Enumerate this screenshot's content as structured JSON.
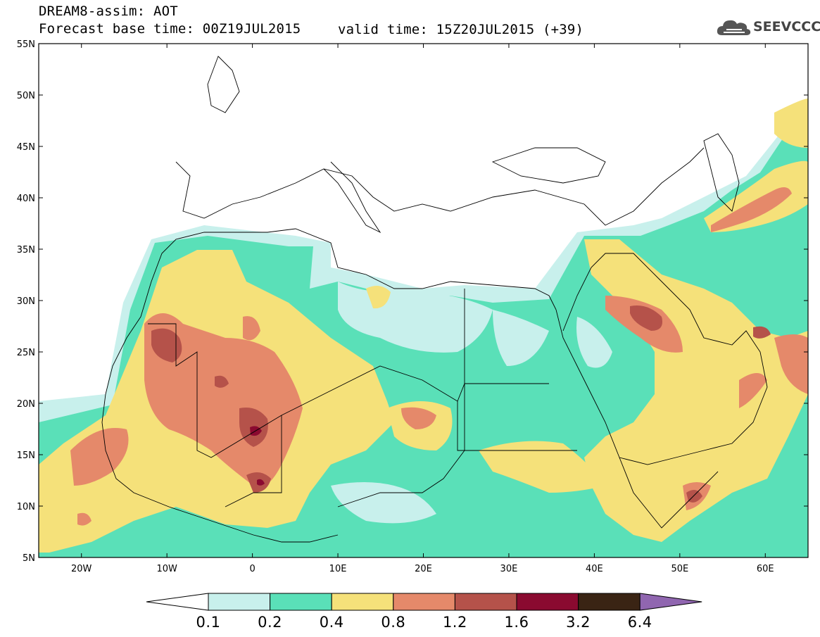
{
  "header": {
    "title": "DREAM8-assim: AOT",
    "base_time": "Forecast base time: 00Z19JUL2015",
    "valid_time": "valid time: 15Z20JUL2015 (+39)"
  },
  "logo": {
    "text": "SEEVCCC",
    "icon": "cloud-icon"
  },
  "map": {
    "projection": "lat-lon",
    "lon_range": [
      -25,
      65
    ],
    "lat_range": [
      5,
      55
    ],
    "lat_labels": [
      "55N",
      "50N",
      "45N",
      "40N",
      "35N",
      "30N",
      "25N",
      "20N",
      "15N",
      "10N",
      "5N"
    ],
    "lon_labels": [
      "20W",
      "10W",
      "0",
      "10E",
      "20E",
      "30E",
      "40E",
      "50E",
      "60E"
    ]
  },
  "colorbar": {
    "levels": [
      "0.1",
      "0.2",
      "0.4",
      "0.8",
      "1.2",
      "1.6",
      "3.2",
      "6.4"
    ],
    "colors": [
      "#c8f0ec",
      "#5ae0b8",
      "#f5e17a",
      "#e5896a",
      "#b5524a",
      "#8a0a30",
      "#3a2414",
      "#9066b0"
    ],
    "under_color": "#ffffff"
  },
  "colors": {
    "c01": "#c8f0ec",
    "c02": "#5ae0b8",
    "c04": "#f5e17a",
    "c08": "#e5896a",
    "c12": "#b5524a",
    "c16": "#8a0a30"
  }
}
